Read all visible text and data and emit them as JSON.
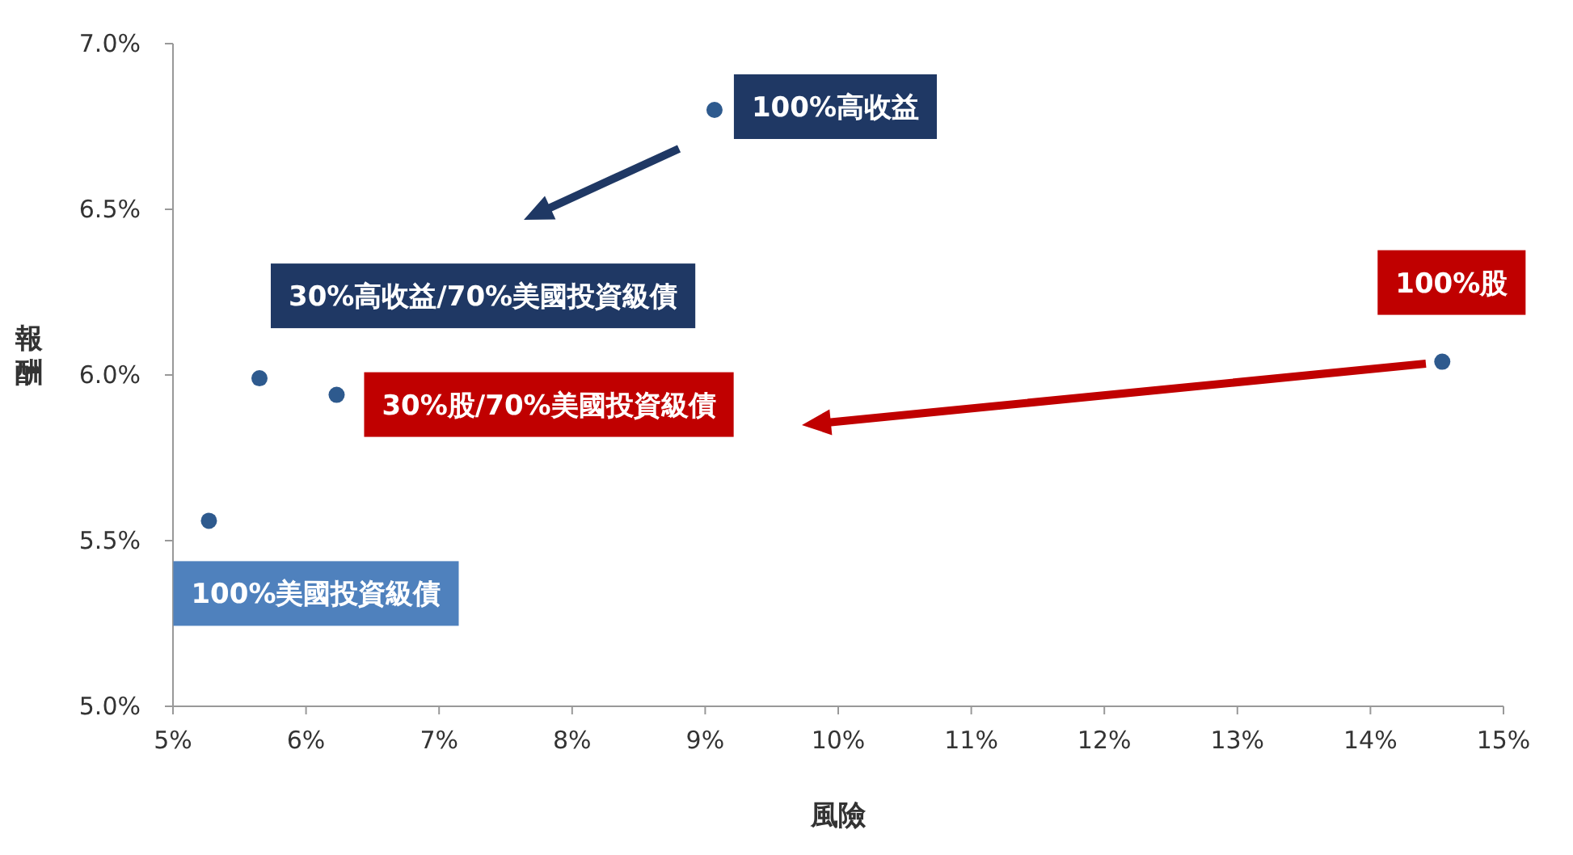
{
  "chart_data": {
    "type": "scatter",
    "xlabel": "風險",
    "ylabel": "報酬",
    "marker": "circle",
    "series": [
      {
        "color": "#2e5a8e",
        "x": [
          5.27,
          5.65,
          6.23,
          9.07,
          14.54
        ],
        "values": [
          5.56,
          5.99,
          5.94,
          6.8,
          6.04
        ]
      }
    ],
    "xlim": [
      5,
      15
    ],
    "xticks": [
      {
        "value": 5,
        "label": "5%"
      },
      {
        "value": 6,
        "label": "6%"
      },
      {
        "value": 7,
        "label": "7%"
      },
      {
        "value": 8,
        "label": "8%"
      },
      {
        "value": 9,
        "label": "9%"
      },
      {
        "value": 10,
        "label": "10%"
      },
      {
        "value": 11,
        "label": "11%"
      },
      {
        "value": 12,
        "label": "12%"
      },
      {
        "value": 13,
        "label": "13%"
      },
      {
        "value": 14,
        "label": "14%"
      },
      {
        "value": 15,
        "label": "15%"
      }
    ],
    "ylim": [
      5,
      7
    ],
    "yticks": [
      {
        "value": 5,
        "label": "5.0%"
      },
      {
        "value": 5.5,
        "label": "5.5%"
      },
      {
        "value": 6,
        "label": "6.0%"
      },
      {
        "value": 6.5,
        "label": "6.5%"
      },
      {
        "value": 7,
        "label": "7.0%"
      }
    ],
    "annotations": [
      {
        "text": "100%高收益",
        "x": 9.07,
        "y": 6.8
      },
      {
        "text": "30%高收益/70%美國投資級債",
        "x": 5.65,
        "y": 5.99
      },
      {
        "text": "30%股/70%美國投資級債",
        "x": 6.23,
        "y": 5.94
      },
      {
        "text": "100%美國投資級債",
        "x": 5.27,
        "y": 5.56
      },
      {
        "text": "100%股",
        "x": 14.54,
        "y": 6.04
      }
    ]
  }
}
